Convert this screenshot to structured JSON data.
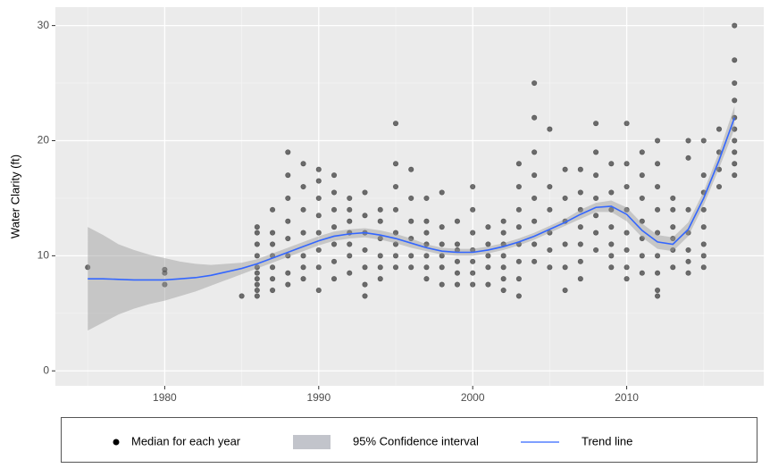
{
  "chart_data": {
    "type": "scatter",
    "y_label": "Water Clarity (ft)",
    "xlim": [
      1972.9,
      2018.9
    ],
    "ylim": [
      -1.3,
      31.6
    ],
    "xticks": [
      1980,
      1990,
      2000,
      2010
    ],
    "yticks": [
      0,
      10,
      20,
      30
    ],
    "grid": true,
    "legend": "bottom",
    "points": {
      "name": "Median for each year",
      "color": "#000000",
      "groups": [
        {
          "x": 1975,
          "values": [
            9
          ]
        },
        {
          "x": 1980,
          "values": [
            7.5,
            8.5,
            8.8
          ]
        },
        {
          "x": 1985,
          "values": [
            6.5
          ]
        },
        {
          "x": 1986,
          "values": [
            6.5,
            7,
            7.5,
            8,
            8.5,
            9,
            10,
            11,
            12,
            12.5
          ]
        },
        {
          "x": 1987,
          "values": [
            7,
            8,
            9,
            10,
            11,
            12,
            14
          ]
        },
        {
          "x": 1988,
          "values": [
            7.5,
            8.5,
            10,
            11.5,
            13,
            15,
            17,
            19
          ]
        },
        {
          "x": 1989,
          "values": [
            8,
            9,
            10,
            12,
            14,
            16,
            18
          ]
        },
        {
          "x": 1990,
          "values": [
            7,
            9,
            10.5,
            12,
            13.5,
            15,
            16.5,
            17.5
          ]
        },
        {
          "x": 1991,
          "values": [
            8,
            9.5,
            11,
            12.5,
            14,
            15.5,
            17
          ]
        },
        {
          "x": 1992,
          "values": [
            8.5,
            10,
            11,
            12,
            13,
            14,
            15
          ]
        },
        {
          "x": 1993,
          "values": [
            6.5,
            7.5,
            9,
            10.5,
            12,
            13.5,
            15.5
          ]
        },
        {
          "x": 1994,
          "values": [
            8,
            9,
            10,
            11.5,
            13,
            14
          ]
        },
        {
          "x": 1995,
          "values": [
            9,
            10,
            11,
            12,
            14,
            16,
            18,
            21.5
          ]
        },
        {
          "x": 1996,
          "values": [
            9,
            10,
            11.5,
            13,
            15,
            17.5
          ]
        },
        {
          "x": 1997,
          "values": [
            8,
            9,
            10,
            11,
            12,
            13,
            15
          ]
        },
        {
          "x": 1998,
          "values": [
            7.5,
            9,
            10,
            11,
            12.5,
            15.5
          ]
        },
        {
          "x": 1999,
          "values": [
            7.5,
            8.5,
            9.5,
            10.5,
            11,
            13
          ]
        },
        {
          "x": 2000,
          "values": [
            7.5,
            8.5,
            9.5,
            10.5,
            12,
            14,
            16
          ]
        },
        {
          "x": 2001,
          "values": [
            7.5,
            9,
            10,
            11,
            12.5
          ]
        },
        {
          "x": 2002,
          "values": [
            7,
            8,
            9,
            10,
            11,
            12,
            13
          ]
        },
        {
          "x": 2003,
          "values": [
            6.5,
            8,
            9.5,
            11,
            12.5,
            14,
            16,
            18
          ]
        },
        {
          "x": 2004,
          "values": [
            9.5,
            11,
            13,
            15,
            17,
            19,
            22,
            25
          ]
        },
        {
          "x": 2005,
          "values": [
            9,
            10.5,
            12,
            14,
            16,
            21
          ]
        },
        {
          "x": 2006,
          "values": [
            7,
            9,
            11,
            13,
            15,
            17.5
          ]
        },
        {
          "x": 2007,
          "values": [
            8,
            9.5,
            11,
            12.5,
            14,
            15.5,
            17.5
          ]
        },
        {
          "x": 2008,
          "values": [
            10.5,
            12,
            13.5,
            15,
            17,
            19,
            21.5
          ]
        },
        {
          "x": 2009,
          "values": [
            9,
            10,
            11,
            12.5,
            14,
            15.5,
            18
          ]
        },
        {
          "x": 2010,
          "values": [
            8,
            9,
            10.5,
            12,
            14,
            16,
            18,
            21.5
          ]
        },
        {
          "x": 2011,
          "values": [
            8.5,
            10,
            11.5,
            13,
            15,
            17,
            19
          ]
        },
        {
          "x": 2012,
          "values": [
            6.5,
            7,
            8.5,
            10,
            12,
            14,
            16,
            18,
            20
          ]
        },
        {
          "x": 2013,
          "values": [
            9,
            10.5,
            11.5,
            12.5,
            14,
            15
          ]
        },
        {
          "x": 2014,
          "values": [
            8.5,
            9.5,
            10.5,
            12,
            14,
            18.5,
            20
          ]
        },
        {
          "x": 2015,
          "values": [
            9,
            10,
            11,
            12.5,
            14,
            15.5,
            17,
            20
          ]
        },
        {
          "x": 2016,
          "values": [
            16,
            17.5,
            19,
            21
          ]
        },
        {
          "x": 2017,
          "values": [
            17,
            18,
            19,
            20,
            21,
            22,
            23.5,
            25,
            27,
            30
          ]
        }
      ]
    },
    "band": {
      "name": "95% Confidence interval",
      "color": "#c2c4cb",
      "x": [
        1975,
        1976,
        1977,
        1978,
        1979,
        1980,
        1981,
        1982,
        1983,
        1984,
        1985,
        1986,
        1987,
        1988,
        1989,
        1990,
        1991,
        1992,
        1993,
        1994,
        1995,
        1996,
        1997,
        1998,
        1999,
        2000,
        2001,
        2002,
        2003,
        2004,
        2005,
        2006,
        2007,
        2008,
        2009,
        2010,
        2011,
        2012,
        2013,
        2014,
        2015,
        2016,
        2017
      ],
      "lower": [
        3.5,
        4.2,
        4.9,
        5.4,
        5.8,
        6.1,
        6.5,
        6.9,
        7.4,
        7.9,
        8.4,
        8.9,
        9.4,
        9.9,
        10.4,
        10.9,
        11.3,
        11.5,
        11.6,
        11.4,
        11.1,
        10.7,
        10.4,
        10.1,
        10,
        10,
        10.2,
        10.5,
        10.9,
        11.4,
        12,
        12.6,
        13.2,
        13.8,
        13.8,
        13,
        11.6,
        10.6,
        10.4,
        11.7,
        14.4,
        17.6,
        21
      ],
      "upper": [
        12.5,
        11.8,
        11,
        10.5,
        10.1,
        9.8,
        9.5,
        9.3,
        9.2,
        9.3,
        9.4,
        9.7,
        10.2,
        10.7,
        11.2,
        11.7,
        12.1,
        12.3,
        12.4,
        12.2,
        11.9,
        11.5,
        11,
        10.7,
        10.6,
        10.6,
        10.8,
        11.1,
        11.5,
        12,
        12.6,
        13.2,
        14,
        14.6,
        14.8,
        14.2,
        12.8,
        11.8,
        11.6,
        12.9,
        15.6,
        19,
        23
      ]
    },
    "trend": {
      "name": "Trend line",
      "color": "#3366ff",
      "x": [
        1975,
        1976,
        1977,
        1978,
        1979,
        1980,
        1981,
        1982,
        1983,
        1984,
        1985,
        1986,
        1987,
        1988,
        1989,
        1990,
        1991,
        1992,
        1993,
        1994,
        1995,
        1996,
        1997,
        1998,
        1999,
        2000,
        2001,
        2002,
        2003,
        2004,
        2005,
        2006,
        2007,
        2008,
        2009,
        2010,
        2011,
        2012,
        2013,
        2014,
        2015,
        2016,
        2017
      ],
      "values": [
        8,
        8,
        7.95,
        7.9,
        7.9,
        7.9,
        8,
        8.1,
        8.3,
        8.6,
        8.9,
        9.3,
        9.8,
        10.3,
        10.8,
        11.3,
        11.7,
        11.9,
        12,
        11.8,
        11.5,
        11.1,
        10.7,
        10.4,
        10.3,
        10.3,
        10.5,
        10.8,
        11.2,
        11.7,
        12.3,
        12.9,
        13.6,
        14.2,
        14.3,
        13.6,
        12.2,
        11.2,
        11,
        12.3,
        15,
        18.3,
        22
      ]
    }
  }
}
